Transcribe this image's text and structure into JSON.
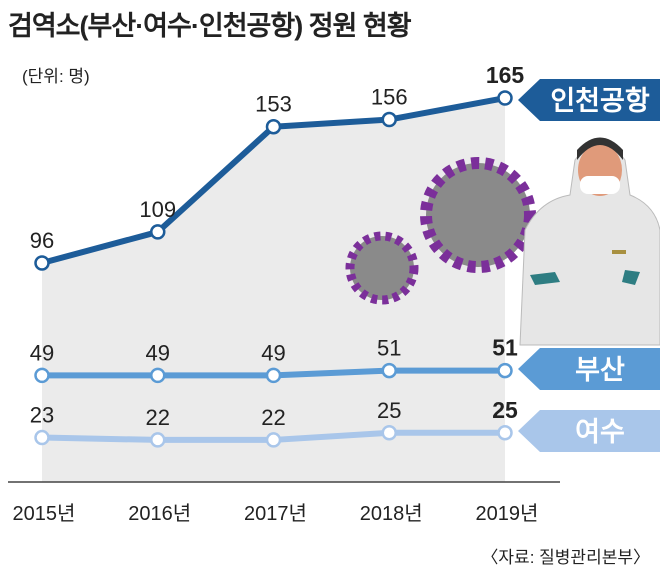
{
  "title": "검역소(부산·여수·인천공항) 정원 현황",
  "unit": "(단위: 명)",
  "source": "〈자료: 질병관리본부〉",
  "chart_data": {
    "type": "line",
    "title": "검역소(부산·여수·인천공항) 정원 현황",
    "ylabel": "(단위: 명)",
    "categories": [
      "2015년",
      "2016년",
      "2017년",
      "2018년",
      "2019년"
    ],
    "series": [
      {
        "name": "인천공항",
        "values": [
          96,
          109,
          153,
          156,
          165
        ],
        "color": "#1d5c99"
      },
      {
        "name": "부산",
        "values": [
          49,
          49,
          49,
          51,
          51
        ],
        "color": "#5b9bd5"
      },
      {
        "name": "여수",
        "values": [
          23,
          22,
          22,
          25,
          25
        ],
        "color": "#a9c6ea"
      }
    ],
    "grid": false,
    "legend": "right-end labels",
    "area_fill": "#ebebeb"
  }
}
